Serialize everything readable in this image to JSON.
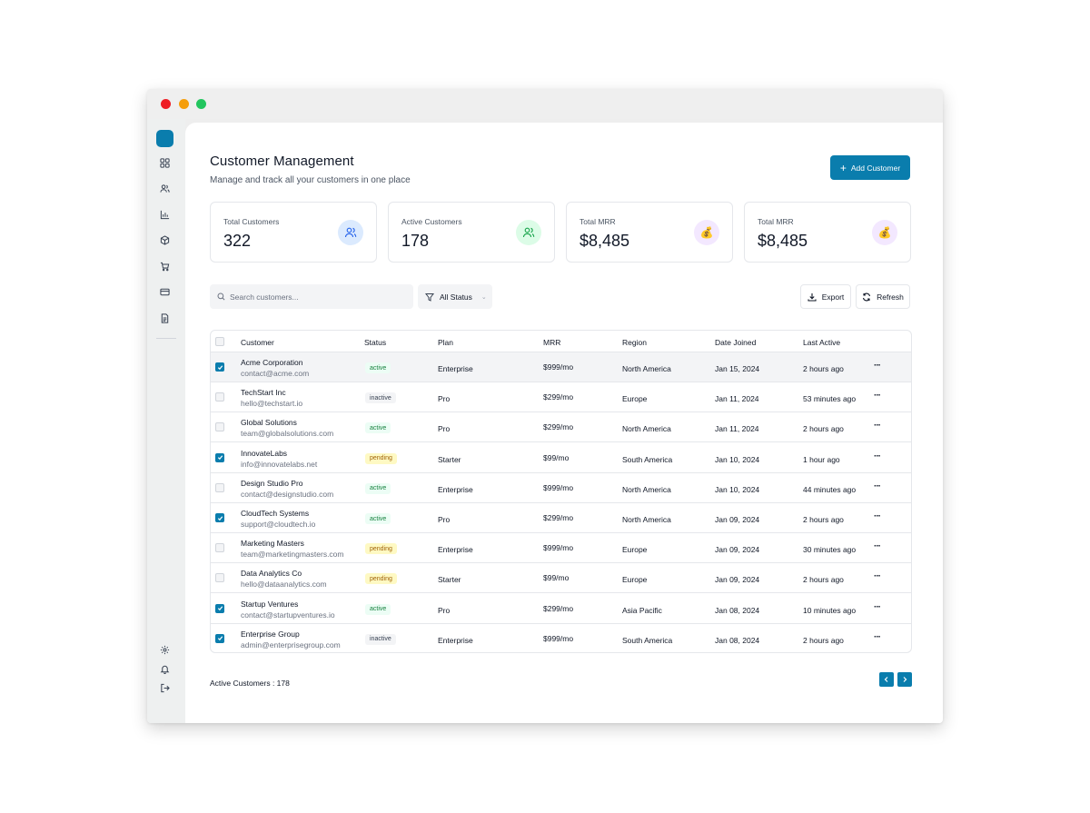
{
  "window": {
    "controls": [
      "close",
      "minimize",
      "maximize"
    ]
  },
  "sidebar": {
    "items": [
      {
        "icon": "dashboard-icon"
      },
      {
        "icon": "users-icon"
      },
      {
        "icon": "chart-icon"
      },
      {
        "icon": "box-icon"
      },
      {
        "icon": "cart-icon"
      },
      {
        "icon": "credit-card-icon"
      },
      {
        "icon": "document-icon"
      }
    ],
    "bottom": [
      {
        "icon": "settings-icon"
      },
      {
        "icon": "bell-icon"
      },
      {
        "icon": "logout-icon"
      }
    ]
  },
  "header": {
    "title": "Customer Management",
    "subtitle": "Manage and track all your customers in one place",
    "add_button": "Add Customer"
  },
  "stats": [
    {
      "label": "Total Customers",
      "value": "322",
      "icon": "users-icon",
      "icon_bg": "#dbeafe"
    },
    {
      "label": "Active Customers",
      "value": "178",
      "icon": "users-icon",
      "icon_bg": "#dcfce7"
    },
    {
      "label": "Total MRR",
      "value": "$8,485",
      "icon": "money-bag-icon",
      "icon_bg": "#f3e8ff"
    },
    {
      "label": "Total MRR",
      "value": "$8,485",
      "icon": "money-bag-icon",
      "icon_bg": "#f3e8ff"
    }
  ],
  "toolbar": {
    "search_placeholder": "Search customers...",
    "filter_label": "All Status",
    "export_label": "Export",
    "refresh_label": "Refresh"
  },
  "table": {
    "columns": [
      "Customer",
      "Status",
      "Plan",
      "MRR",
      "Region",
      "Date Joined",
      "Last Active"
    ],
    "rows": [
      {
        "checked": true,
        "name": "Acme Corporation",
        "email": "contact@acme.com",
        "status": "active",
        "plan": "Enterprise",
        "mrr": "$999/mo",
        "region": "North America",
        "joined": "Jan 15, 2024",
        "last_active": "2 hours ago"
      },
      {
        "checked": false,
        "name": "TechStart Inc",
        "email": "hello@techstart.io",
        "status": "inactive",
        "plan": "Pro",
        "mrr": "$299/mo",
        "region": "Europe",
        "joined": "Jan 11, 2024",
        "last_active": "53 minutes ago"
      },
      {
        "checked": false,
        "name": "Global Solutions",
        "email": "team@globalsolutions.com",
        "status": "active",
        "plan": "Pro",
        "mrr": "$299/mo",
        "region": "North America",
        "joined": "Jan 11, 2024",
        "last_active": "2 hours ago"
      },
      {
        "checked": true,
        "name": "InnovateLabs",
        "email": "info@innovatelabs.net",
        "status": "pending",
        "plan": "Starter",
        "mrr": "$99/mo",
        "region": "South America",
        "joined": "Jan 10, 2024",
        "last_active": "1 hour ago"
      },
      {
        "checked": false,
        "name": "Design Studio Pro",
        "email": "contact@designstudio.com",
        "status": "active",
        "plan": "Enterprise",
        "mrr": "$999/mo",
        "region": "North America",
        "joined": "Jan 10, 2024",
        "last_active": "44 minutes ago"
      },
      {
        "checked": true,
        "name": "CloudTech Systems",
        "email": "support@cloudtech.io",
        "status": "active",
        "plan": "Pro",
        "mrr": "$299/mo",
        "region": "North America",
        "joined": "Jan 09, 2024",
        "last_active": "2 hours ago"
      },
      {
        "checked": false,
        "name": "Marketing Masters",
        "email": "team@marketingmasters.com",
        "status": "pending",
        "plan": "Enterprise",
        "mrr": "$999/mo",
        "region": "Europe",
        "joined": "Jan 09, 2024",
        "last_active": "30 minutes ago"
      },
      {
        "checked": false,
        "name": "Data Analytics Co",
        "email": "hello@dataanalytics.com",
        "status": "pending",
        "plan": "Starter",
        "mrr": "$99/mo",
        "region": "Europe",
        "joined": "Jan 09, 2024",
        "last_active": "2 hours ago"
      },
      {
        "checked": true,
        "name": "Startup Ventures",
        "email": "contact@startupventures.io",
        "status": "active",
        "plan": "Pro",
        "mrr": "$299/mo",
        "region": "Asia Pacific",
        "joined": "Jan 08, 2024",
        "last_active": "10 minutes ago"
      },
      {
        "checked": true,
        "name": "Enterprise Group",
        "email": "admin@enterprisegroup.com",
        "status": "inactive",
        "plan": "Enterprise",
        "mrr": "$999/mo",
        "region": "South America",
        "joined": "Jan 08, 2024",
        "last_active": "2 hours ago"
      }
    ],
    "more_label": "···"
  },
  "footer": {
    "summary": "Active Customers : 178"
  },
  "colors": {
    "accent": "#0a7dad"
  }
}
